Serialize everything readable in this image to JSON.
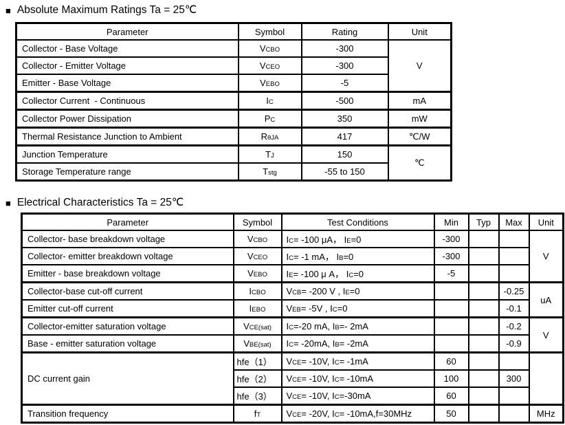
{
  "colors": {
    "background": "#ffffff",
    "text": "#000000",
    "table_border": "#000000"
  },
  "sections": {
    "abs_max": {
      "bullet": "■",
      "title": "Absolute Maximum Ratings Ta = 25℃",
      "headers": [
        "Parameter",
        "Symbol",
        "Rating",
        "Unit"
      ],
      "rows": [
        {
          "parameter": "Collector - Base Voltage",
          "symbol": "V~CBO~",
          "rating": "-300"
        },
        {
          "parameter": "Collector - Emitter Voltage",
          "symbol": "V~CEO~",
          "rating": "-300"
        },
        {
          "parameter": "Emitter - Base Voltage",
          "symbol": "V~EBO~",
          "rating": "-5"
        },
        {
          "parameter": "Collector Current  - Continuous",
          "symbol": "I~C~",
          "rating": "-500"
        },
        {
          "parameter": "Collector Power Dissipation",
          "symbol": "P~C~",
          "rating": "350"
        },
        {
          "parameter": "Thermal Resistance Junction to Ambient",
          "symbol": "R~θJA~",
          "rating": "417"
        },
        {
          "parameter": "Junction Temperature",
          "symbol": "T~J~",
          "rating": "150"
        },
        {
          "parameter": "Storage Temperature range",
          "symbol": "T~stg~",
          "rating": "-55 to 150"
        }
      ],
      "unit_spans": [
        {
          "unit": "V",
          "rows": 3
        },
        {
          "unit": "mA",
          "rows": 1
        },
        {
          "unit": "mW",
          "rows": 1
        },
        {
          "unit": "℃/W",
          "rows": 1
        },
        {
          "unit": "℃",
          "rows": 2
        }
      ],
      "group_ends": [
        2,
        3,
        4,
        5
      ]
    },
    "electrical": {
      "bullet": "■",
      "title": "Electrical Characteristics Ta = 25℃",
      "headers": [
        "Parameter",
        "Symbol",
        "Test Conditions",
        "Min",
        "Typ",
        "Max",
        "Unit"
      ],
      "rows": [
        {
          "parameter": "Collector- base breakdown voltage",
          "symbol": "V~CBO~",
          "conditions": "I~C~= -100 μA， I~E~=0",
          "min": "-300",
          "typ": "",
          "max": ""
        },
        {
          "parameter": "Collector- emitter breakdown voltage",
          "symbol": "V~CEO~",
          "conditions": "I~C~= -1 mA， I~B~=0",
          "min": "-300",
          "typ": "",
          "max": ""
        },
        {
          "parameter": "Emitter - base breakdown voltage",
          "symbol": "V~EBO~",
          "conditions": "I~E~= -100 μ A， I~C~=0",
          "min": "-5",
          "typ": "",
          "max": ""
        },
        {
          "parameter": "Collector-base cut-off current",
          "symbol": "I~CBO~",
          "conditions": "V~CB~= -200 V , I~E~=0",
          "min": "",
          "typ": "",
          "max": "-0.25"
        },
        {
          "parameter": "Emitter cut-off current",
          "symbol": "I~EBO~",
          "conditions": "V~EB~= -5V , I~C~=0",
          "min": "",
          "typ": "",
          "max": "-0.1"
        },
        {
          "parameter": "Collector-emitter saturation voltage",
          "symbol": "V~CE(sat)~",
          "conditions": "I~C~=-20 mA, I~B~=- 2mA",
          "min": "",
          "typ": "",
          "max": "-0.2"
        },
        {
          "parameter": "Base - emitter saturation voltage",
          "symbol": "V~BE(sat)~",
          "conditions": "I~C~= -20mA, I~B~= -2mA",
          "min": "",
          "typ": "",
          "max": "-0.9"
        },
        {
          "parameter": "DC current gain",
          "param_rowspan": 3,
          "symbol": "hfe（1）",
          "symbol_align": "left",
          "conditions": "V~CE~= -10V, I~C~= -1mA",
          "min": "60",
          "typ": "",
          "max": ""
        },
        {
          "param_merged": true,
          "symbol": "hfe（2）",
          "symbol_align": "left",
          "conditions": "V~CE~= -10V, I~C~= -10mA",
          "min": "100",
          "typ": "",
          "max": "300"
        },
        {
          "param_merged": true,
          "symbol": "hfe（3）",
          "symbol_align": "left",
          "conditions": "V~CE~= -10V, I~C~=-30mA",
          "min": "60",
          "typ": "",
          "max": ""
        },
        {
          "parameter": "Transition frequency",
          "symbol": "f~T~",
          "conditions": "V~CE~= -20V, I~C~= -10mA,f=30MHz",
          "min": "50",
          "typ": "",
          "max": ""
        }
      ],
      "unit_spans": [
        {
          "unit": "V",
          "rows": 3
        },
        {
          "unit": "uA",
          "rows": 2
        },
        {
          "unit": "V",
          "rows": 2
        },
        {
          "unit": "",
          "rows": 3
        },
        {
          "unit": "MHz",
          "rows": 1
        }
      ],
      "group_ends": [
        2,
        4,
        6,
        9
      ]
    }
  }
}
